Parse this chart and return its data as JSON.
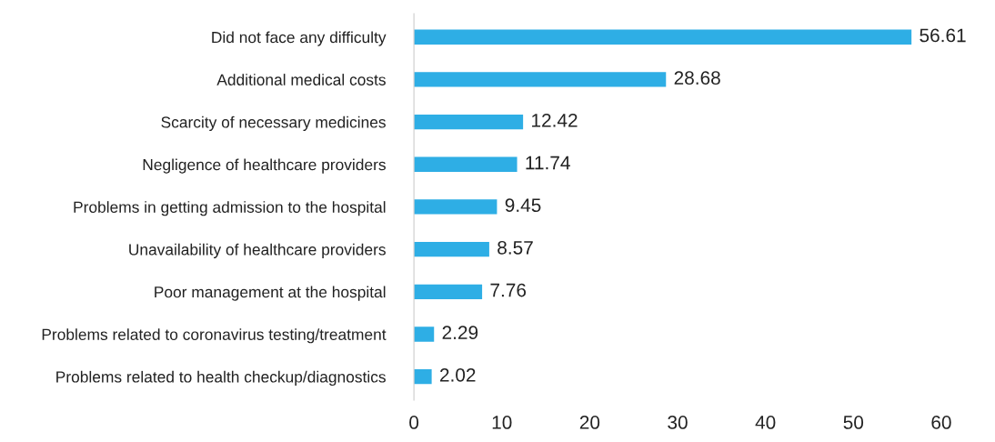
{
  "chart_data": {
    "type": "bar",
    "orientation": "horizontal",
    "categories": [
      "Did not face any difficulty",
      "Additional medical costs",
      "Scarcity of necessary medicines",
      "Negligence of healthcare providers",
      "Problems in getting admission to the hospital",
      "Unavailability of healthcare providers",
      "Poor management at the hospital",
      "Problems related to coronavirus testing/treatment",
      "Problems related to health checkup/diagnostics"
    ],
    "values": [
      56.61,
      28.68,
      12.42,
      11.74,
      9.45,
      8.57,
      7.76,
      2.29,
      2.02
    ],
    "color": "#2eaee5",
    "xlim": [
      0,
      60
    ],
    "xticks": [
      0,
      10,
      20,
      30,
      40,
      50,
      60
    ],
    "grid": false,
    "legend": false,
    "data_labels": true
  }
}
